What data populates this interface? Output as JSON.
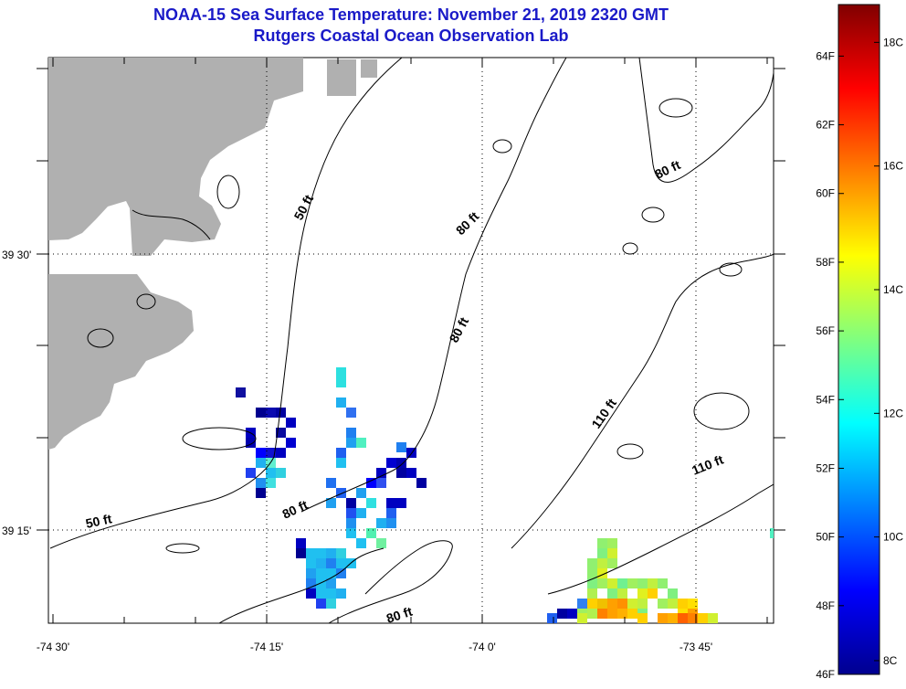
{
  "title_line1": "NOAA-15 Sea Surface Temperature:  November 21, 2019 2320 GMT",
  "title_line2": "Rutgers Coastal Ocean Observation Lab",
  "axes": {
    "lon_ticks": [
      "-74 30'",
      "-74 15'",
      "-74 0'",
      "-73 45'"
    ],
    "lat_ticks": [
      "39 30'",
      "39 15'"
    ]
  },
  "contour_labels": [
    "50 ft",
    "50 ft",
    "80 ft",
    "80 ft",
    "80 ft",
    "80 ft",
    "80 ft",
    "110 ft",
    "110 ft"
  ],
  "colorbar": {
    "fahrenheit_ticks": [
      "64F",
      "62F",
      "60F",
      "58F",
      "56F",
      "54F",
      "52F",
      "50F",
      "48F",
      "46F"
    ],
    "celsius_ticks": [
      "18C",
      "16C",
      "14C",
      "12C",
      "10C",
      "8C"
    ],
    "min_f": 46,
    "max_f": 65.5
  },
  "colors": {
    "title": "#1a1ac8",
    "land": "#b0b0b0",
    "no_data": "#ffffff"
  }
}
